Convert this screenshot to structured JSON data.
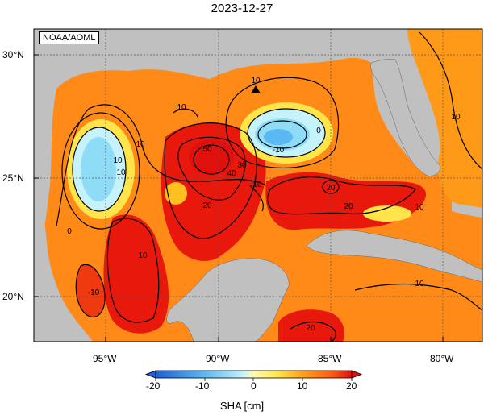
{
  "title": "2023-12-27",
  "credit": "NOAA/AOML",
  "lat_labels": [
    "30°N",
    "25°N",
    "20°N"
  ],
  "lon_labels": [
    "95°W",
    "90°W",
    "85°W",
    "80°W"
  ],
  "colorbar": {
    "ticks": [
      "-20",
      "-10",
      "0",
      "10",
      "20"
    ],
    "label": "SHA [cm]",
    "colors": [
      "#1f5fd8",
      "#3a8ee8",
      "#5ab8f2",
      "#8fdcf7",
      "#c6f2fb",
      "#fffbb0",
      "#ffe54a",
      "#ffc020",
      "#ff9a18",
      "#ff6e12",
      "#f73a10",
      "#e0100c"
    ]
  },
  "contour_labels": [
    "10",
    "0",
    "-10",
    "10",
    "10",
    "10",
    "0",
    "10",
    "20",
    "30",
    "40",
    "50",
    "20",
    "10",
    "0",
    "-10",
    "10",
    "20",
    "20",
    "10",
    "10",
    "20",
    "10",
    "10"
  ],
  "palette": {
    "land": "#c0c0c0",
    "ocean_high": "#e8180c",
    "ocean_mid": "#ff7a14",
    "ocean_low": "#ffb020",
    "cold": "#8fdcf7",
    "colder": "#3a8ee8"
  }
}
